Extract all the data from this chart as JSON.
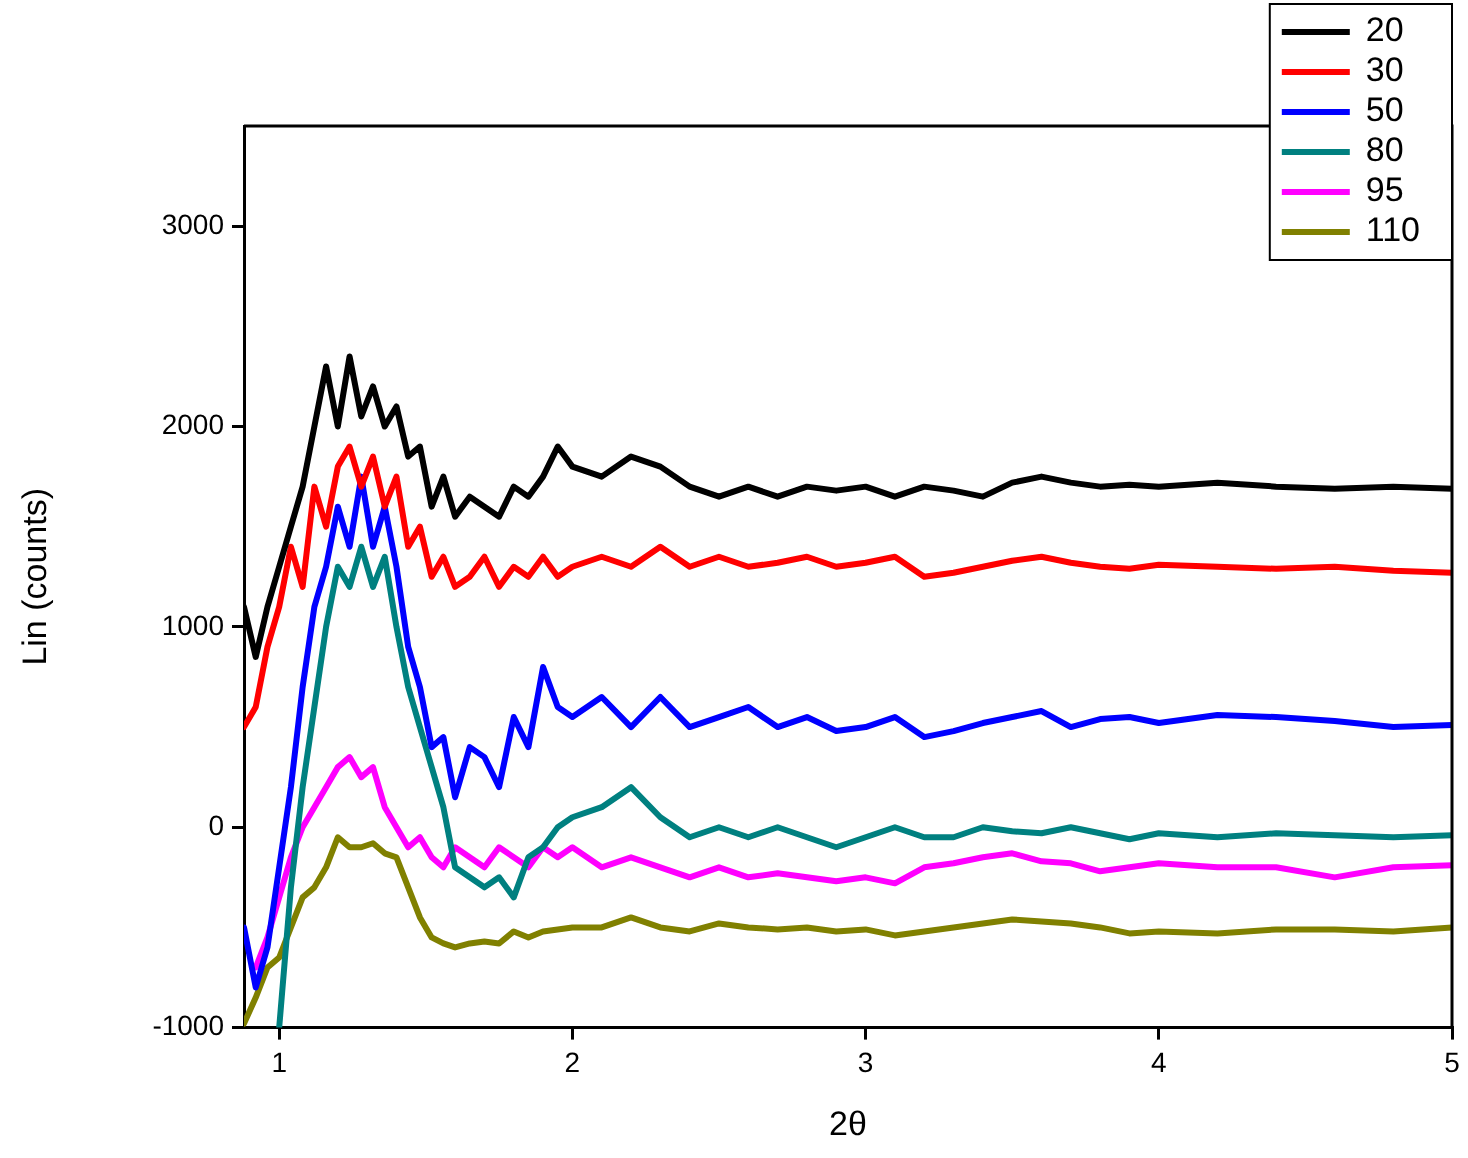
{
  "chart_data": {
    "type": "line",
    "xlabel": "2θ",
    "ylabel": "Lin (counts)",
    "x": [
      0.88,
      0.92,
      0.96,
      1.0,
      1.04,
      1.08,
      1.12,
      1.16,
      1.2,
      1.24,
      1.28,
      1.32,
      1.36,
      1.4,
      1.44,
      1.48,
      1.52,
      1.56,
      1.6,
      1.65,
      1.7,
      1.75,
      1.8,
      1.85,
      1.9,
      1.95,
      2.0,
      2.1,
      2.2,
      2.3,
      2.4,
      2.5,
      2.6,
      2.7,
      2.8,
      2.9,
      3.0,
      3.1,
      3.2,
      3.3,
      3.4,
      3.5,
      3.6,
      3.7,
      3.8,
      3.9,
      4.0,
      4.2,
      4.4,
      4.6,
      4.8,
      5.0
    ],
    "xlim": [
      0.88,
      5
    ],
    "xticks": [
      1,
      2,
      3,
      4,
      5
    ],
    "ylim": [
      -1000,
      3500
    ],
    "yticks": [
      -1000,
      0,
      1000,
      2000,
      3000
    ],
    "grid": false,
    "legend": "top right",
    "marker": "none",
    "line_style": "solid",
    "series": [
      {
        "name": "20",
        "color": "#000000",
        "values": [
          1100,
          850,
          1100,
          1300,
          1500,
          1700,
          2000,
          2300,
          2000,
          2350,
          2050,
          2200,
          2000,
          2100,
          1850,
          1900,
          1600,
          1750,
          1550,
          1650,
          1600,
          1550,
          1700,
          1650,
          1750,
          1900,
          1800,
          1750,
          1850,
          1800,
          1700,
          1650,
          1700,
          1650,
          1700,
          1680,
          1700,
          1650,
          1700,
          1680,
          1650,
          1720,
          1750,
          1720,
          1700,
          1710,
          1700,
          1720,
          1700,
          1690,
          1700,
          1690
        ]
      },
      {
        "name": "30",
        "color": "#ff0000",
        "values": [
          500,
          600,
          900,
          1100,
          1400,
          1200,
          1700,
          1500,
          1800,
          1900,
          1700,
          1850,
          1600,
          1750,
          1400,
          1500,
          1250,
          1350,
          1200,
          1250,
          1350,
          1200,
          1300,
          1250,
          1350,
          1250,
          1300,
          1350,
          1300,
          1400,
          1300,
          1350,
          1300,
          1320,
          1350,
          1300,
          1320,
          1350,
          1250,
          1270,
          1300,
          1330,
          1350,
          1320,
          1300,
          1290,
          1310,
          1300,
          1290,
          1300,
          1280,
          1270
        ]
      },
      {
        "name": "50",
        "color": "#0000ff",
        "values": [
          -500,
          -800,
          -600,
          -200,
          200,
          700,
          1100,
          1300,
          1600,
          1400,
          1750,
          1400,
          1600,
          1300,
          900,
          700,
          400,
          450,
          150,
          400,
          350,
          200,
          550,
          400,
          800,
          600,
          550,
          650,
          500,
          650,
          500,
          550,
          600,
          500,
          550,
          480,
          500,
          550,
          450,
          480,
          520,
          550,
          580,
          500,
          540,
          550,
          520,
          560,
          550,
          530,
          500,
          510
        ]
      },
      {
        "name": "80",
        "color": "#008080",
        "values": [
          null,
          null,
          null,
          -1000,
          -300,
          200,
          600,
          1000,
          1300,
          1200,
          1400,
          1200,
          1350,
          1000,
          700,
          500,
          300,
          100,
          -200,
          -250,
          -300,
          -250,
          -350,
          -150,
          -100,
          0,
          50,
          100,
          200,
          50,
          -50,
          0,
          -50,
          0,
          -50,
          -100,
          -50,
          0,
          -50,
          -50,
          0,
          -20,
          -30,
          0,
          -30,
          -60,
          -30,
          -50,
          -30,
          -40,
          -50,
          -40
        ]
      },
      {
        "name": "95",
        "color": "#ff00ff",
        "values": [
          null,
          -700,
          -550,
          -350,
          -150,
          0,
          100,
          200,
          300,
          350,
          250,
          300,
          100,
          0,
          -100,
          -50,
          -150,
          -200,
          -100,
          -150,
          -200,
          -100,
          -150,
          -200,
          -100,
          -150,
          -100,
          -200,
          -150,
          -200,
          -250,
          -200,
          -250,
          -230,
          -250,
          -270,
          -250,
          -280,
          -200,
          -180,
          -150,
          -130,
          -170,
          -180,
          -220,
          -200,
          -180,
          -200,
          -200,
          -250,
          -200,
          -190
        ]
      },
      {
        "name": "110",
        "color": "#808000",
        "values": [
          -980,
          -850,
          -700,
          -650,
          -500,
          -350,
          -300,
          -200,
          -50,
          -100,
          -100,
          -80,
          -130,
          -150,
          -300,
          -450,
          -550,
          -580,
          -600,
          -580,
          -570,
          -580,
          -520,
          -550,
          -520,
          -510,
          -500,
          -500,
          -450,
          -500,
          -520,
          -480,
          -500,
          -510,
          -500,
          -520,
          -510,
          -540,
          -520,
          -500,
          -480,
          -460,
          -470,
          -480,
          -500,
          -530,
          -520,
          -530,
          -510,
          -510,
          -520,
          -500
        ]
      }
    ]
  }
}
